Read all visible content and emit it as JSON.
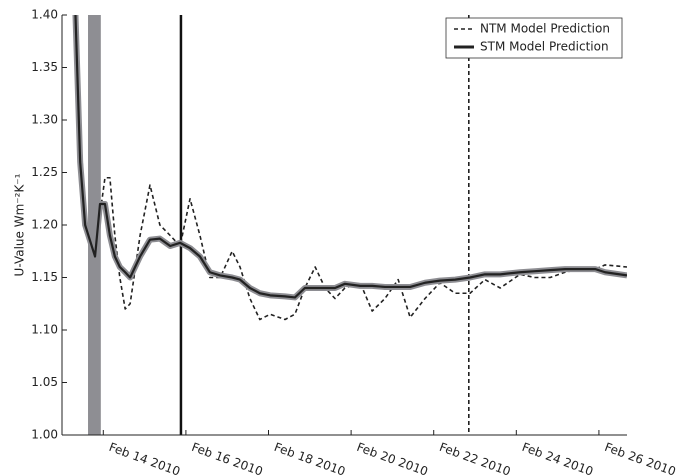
{
  "chart_data": {
    "type": "line",
    "y_label": "U-Value Wm⁻²K⁻¹",
    "x": [
      13.31,
      13.44,
      13.56,
      13.68,
      13.8,
      13.92,
      14.04,
      14.16,
      14.28,
      14.4,
      14.53,
      14.65,
      14.89,
      15.13,
      15.37,
      15.62,
      15.86,
      16.1,
      16.34,
      16.58,
      16.83,
      17.12,
      17.31,
      17.55,
      17.79,
      18.04,
      18.4,
      18.64,
      18.88,
      19.13,
      19.37,
      19.61,
      19.85,
      20.22,
      20.51,
      20.82,
      21.14,
      21.43,
      21.79,
      22.15,
      22.52,
      22.88,
      23.24,
      23.61,
      24.09,
      24.45,
      24.82,
      25.18,
      25.54,
      25.91,
      26.15,
      26.68
    ],
    "series": [
      {
        "name": "NTM Model Prediction",
        "color": "#222222",
        "dashed": true,
        "values": [
          1.42,
          1.3,
          1.2,
          1.18,
          1.175,
          1.21,
          1.245,
          1.245,
          1.19,
          1.15,
          1.12,
          1.125,
          1.19,
          1.238,
          1.2,
          1.19,
          1.18,
          1.225,
          1.19,
          1.15,
          1.15,
          1.175,
          1.16,
          1.13,
          1.11,
          1.115,
          1.11,
          1.115,
          1.14,
          1.16,
          1.14,
          1.13,
          1.14,
          1.145,
          1.118,
          1.13,
          1.148,
          1.112,
          1.13,
          1.145,
          1.135,
          1.135,
          1.148,
          1.14,
          1.153,
          1.15,
          1.15,
          1.155,
          1.158,
          1.158,
          1.162,
          1.16
        ]
      },
      {
        "name": "STM Model Prediction",
        "color": "#222222",
        "dashed": false,
        "halo_color": "#8e8e93",
        "values": [
          1.42,
          1.26,
          1.2,
          1.185,
          1.17,
          1.22,
          1.22,
          1.19,
          1.17,
          1.16,
          1.155,
          1.15,
          1.17,
          1.186,
          1.187,
          1.18,
          1.183,
          1.178,
          1.17,
          1.155,
          1.152,
          1.15,
          1.148,
          1.14,
          1.135,
          1.133,
          1.132,
          1.131,
          1.14,
          1.14,
          1.14,
          1.14,
          1.144,
          1.142,
          1.142,
          1.141,
          1.141,
          1.141,
          1.145,
          1.147,
          1.148,
          1.15,
          1.153,
          1.153,
          1.155,
          1.156,
          1.157,
          1.158,
          1.158,
          1.158,
          1.155,
          1.152
        ]
      }
    ],
    "xlim": [
      13,
      26.68
    ],
    "xticks": [
      {
        "value": 14,
        "label": "Feb 14 2010"
      },
      {
        "value": 16,
        "label": "Feb 16 2010"
      },
      {
        "value": 18,
        "label": "Feb 18 2010"
      },
      {
        "value": 20,
        "label": "Feb 20 2010"
      },
      {
        "value": 22,
        "label": "Feb 22 2010"
      },
      {
        "value": 24,
        "label": "Feb 24 2010"
      },
      {
        "value": 26,
        "label": "Feb 26 2010"
      }
    ],
    "ylim": [
      1.0,
      1.4
    ],
    "yticks": [
      {
        "value": 1.0,
        "label": "1.00"
      },
      {
        "value": 1.05,
        "label": "1.05"
      },
      {
        "value": 1.1,
        "label": "1.10"
      },
      {
        "value": 1.15,
        "label": "1.15"
      },
      {
        "value": 1.2,
        "label": "1.20"
      },
      {
        "value": 1.25,
        "label": "1.25"
      },
      {
        "value": 1.3,
        "label": "1.30"
      },
      {
        "value": 1.35,
        "label": "1.35"
      },
      {
        "value": 1.4,
        "label": "1.40"
      }
    ],
    "span": {
      "x": [
        13.63,
        13.94
      ],
      "color": "#8e8e93"
    },
    "vlines": [
      {
        "x": 15.88,
        "dashed": false,
        "color": "#111111"
      },
      {
        "x": 22.85,
        "dashed": true,
        "color": "#111111"
      }
    ],
    "legend": "upper right"
  }
}
